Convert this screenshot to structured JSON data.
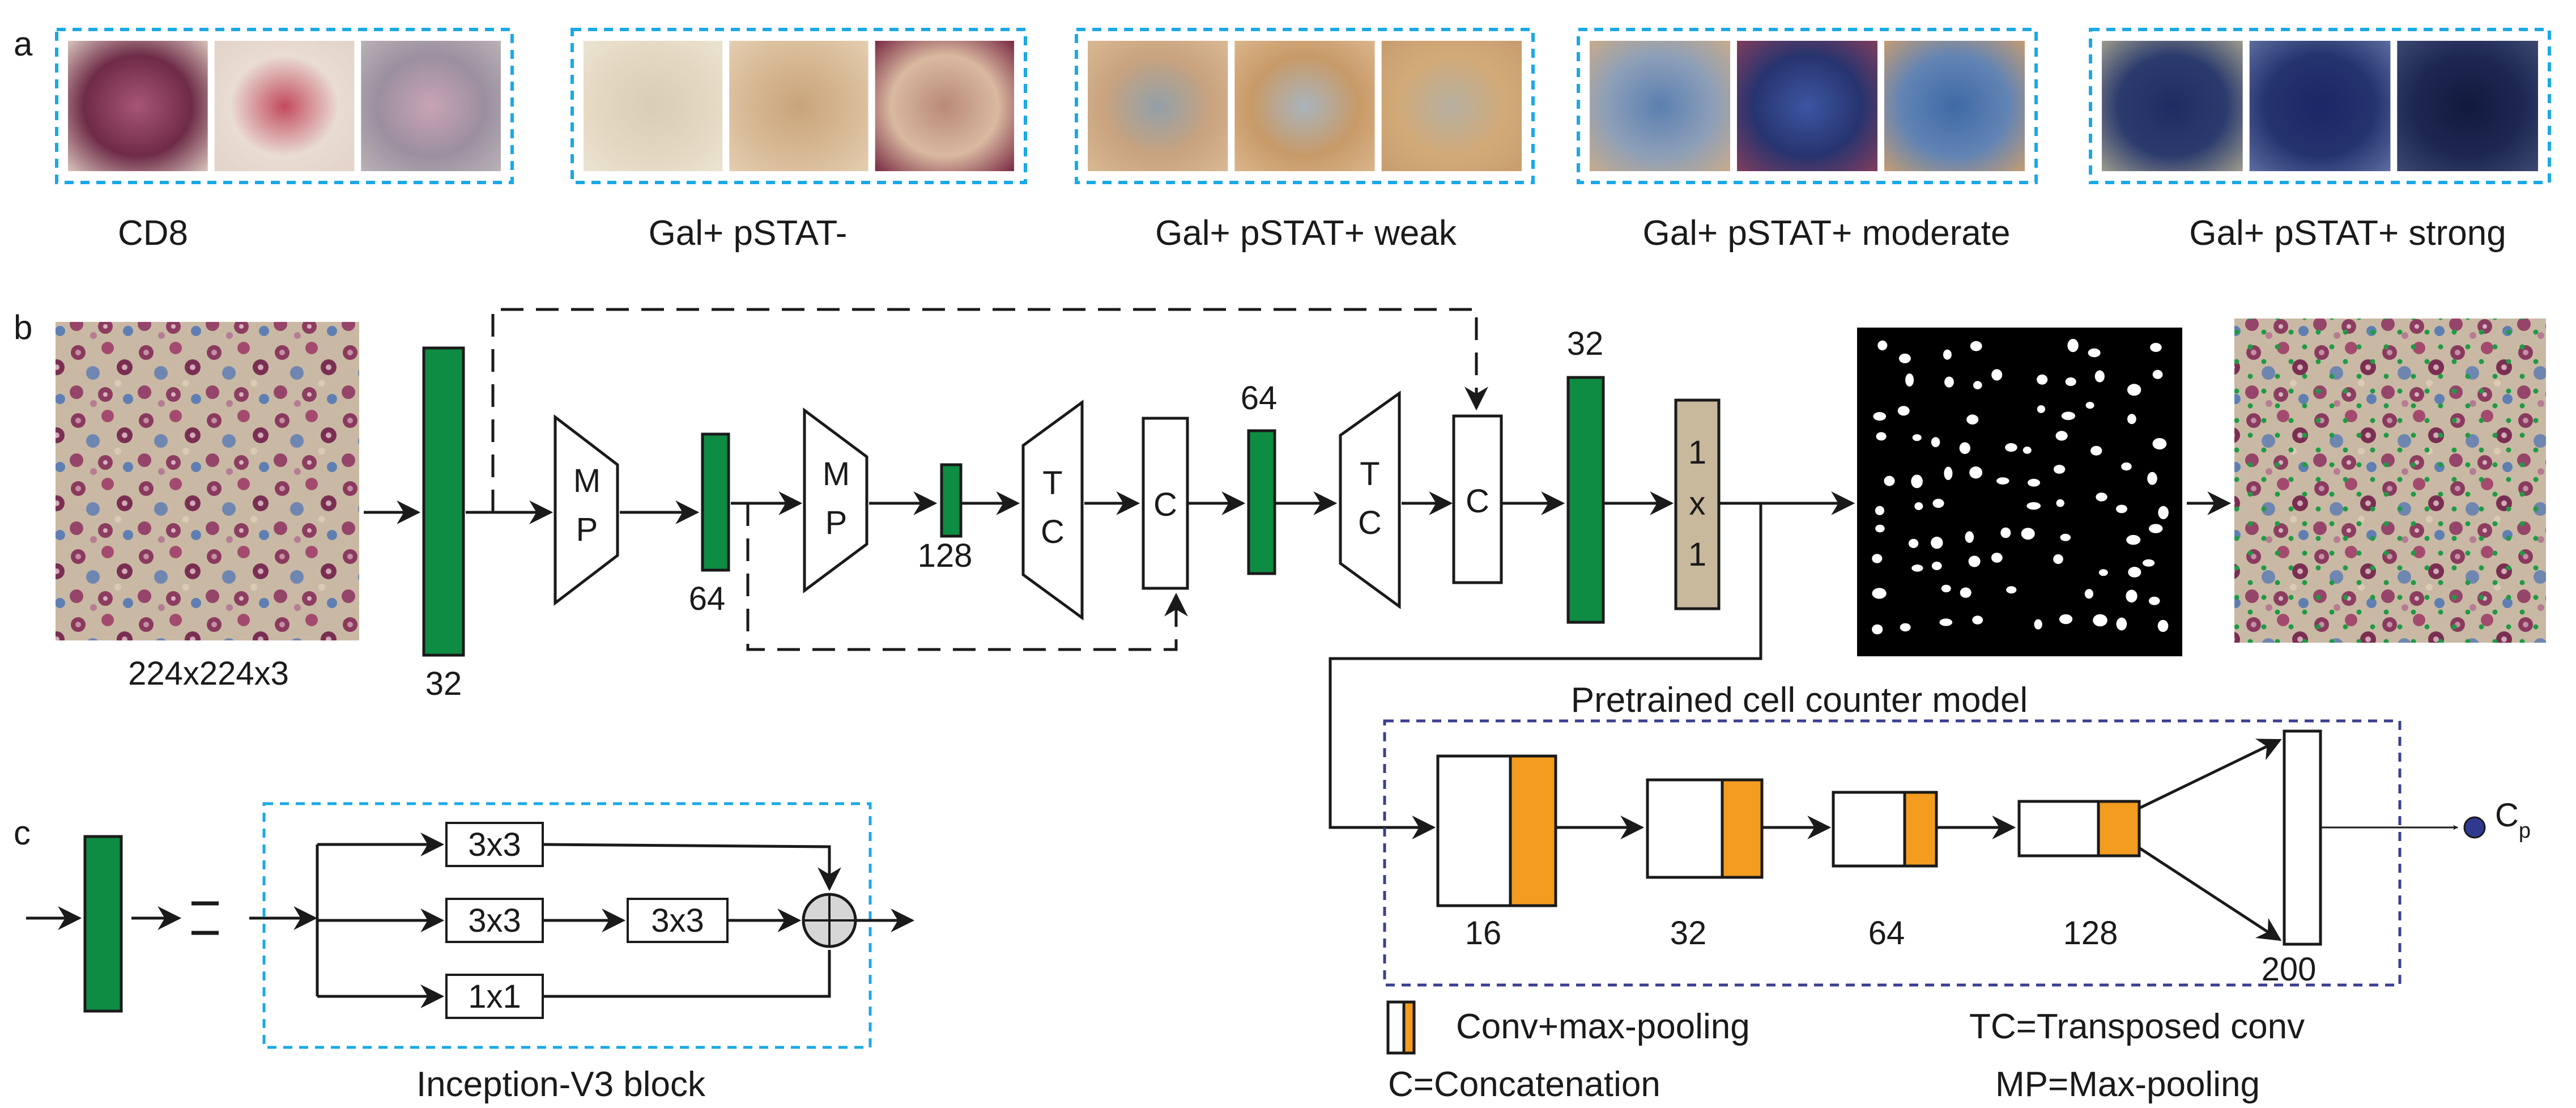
{
  "panels": {
    "a": "a",
    "b": "b",
    "c": "c"
  },
  "colors": {
    "green": "#0e8c43",
    "orange": "#f39c1f",
    "tan": "#c8b89c",
    "cyan_border": "#1aa9e6",
    "navy_border": "#3a3f8f",
    "navy_dot": "#2f3a8f",
    "cell_dot": "#1f9a45"
  },
  "panel_a": {
    "categories": [
      {
        "label": "CD8",
        "tiles": [
          [
            "#6e2b47",
            "#a85577",
            "#d6c1b9"
          ],
          [
            "#e9dcd2",
            "#c24a5e",
            "#e3d3c8"
          ],
          [
            "#9b8fa0",
            "#c8a4b4",
            "#b8b1b5"
          ]
        ]
      },
      {
        "label": "Gal+ pSTAT-",
        "tiles": [
          [
            "#e3d7c0",
            "#d9cdb5",
            "#ebe3d1"
          ],
          [
            "#d7b995",
            "#c9a47a",
            "#e4cdb0"
          ],
          [
            "#d9b9a0",
            "#b98a76",
            "#7b2c45"
          ]
        ]
      },
      {
        "label": "Gal+ pSTAT+ weak",
        "tiles": [
          [
            "#c9a37f",
            "#93a0a8",
            "#d8b893"
          ],
          [
            "#c89a68",
            "#a9b4bc",
            "#d9b58a"
          ],
          [
            "#d2aa78",
            "#b7b0a1",
            "#c79d6d"
          ]
        ]
      },
      {
        "label": "Gal+ pSTAT+ moderate",
        "tiles": [
          [
            "#8d9fb8",
            "#5b7fb1",
            "#c5ab8c"
          ],
          [
            "#27346f",
            "#3c56a2",
            "#7e3d5e"
          ],
          [
            "#6284b4",
            "#3f6aa6",
            "#c29c74"
          ]
        ]
      },
      {
        "label": "Gal+ pSTAT+ strong",
        "tiles": [
          [
            "#2c3b6e",
            "#1f2c63",
            "#9a9a8c"
          ],
          [
            "#25336d",
            "#1b2766",
            "#5b6ca0"
          ],
          [
            "#1d2752",
            "#111a3d",
            "#3b4870"
          ]
        ]
      }
    ]
  },
  "panel_b": {
    "input_size": "224x224x3",
    "filters": {
      "enc1": "32",
      "enc2": "64",
      "bottleneck": "128",
      "dec1": "64",
      "dec2": "32"
    },
    "mp_label": [
      "M",
      "P"
    ],
    "tc_label": [
      "T",
      "C"
    ],
    "c_label": "C",
    "conv1x1_label": [
      "1",
      "x",
      "1"
    ],
    "counter": {
      "title": "Pretrained cell counter model",
      "stages": [
        "16",
        "32",
        "64",
        "128"
      ],
      "dense": "200",
      "output_main": "C",
      "output_sub": "p"
    }
  },
  "panel_c": {
    "block_title": "Inception-V3 block",
    "branches": [
      "3x3",
      "3x3",
      "3x3",
      "1x1"
    ]
  },
  "legend": {
    "conv_maxpool": "Conv+max-pooling",
    "concatenation": "C=Concatenation",
    "transposed": "TC=Transposed conv",
    "maxpooling": "MP=Max-pooling"
  }
}
